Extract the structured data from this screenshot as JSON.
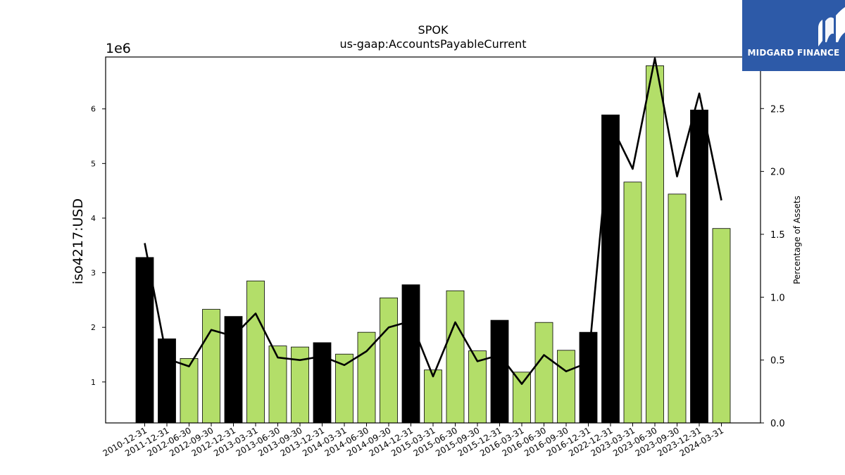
{
  "brand": {
    "name": "MIDGARD FINANCE",
    "bg_color": "#2d5aa8"
  },
  "chart_data": {
    "type": "bar",
    "title": "SPOK",
    "subtitle": "us-gaap:AccountsPayableCurrent",
    "ylabel": "iso4217:USD",
    "y_multiplier_label": "1e6",
    "y2label": "Percentage of Assets",
    "ylim": [
      250000,
      6950000
    ],
    "y2lim": [
      0,
      2.91
    ],
    "y_ticks": [
      1,
      2,
      3,
      4,
      5,
      6
    ],
    "y2_ticks": [
      "0.0",
      "0.5",
      "1.0",
      "1.5",
      "2.0",
      "2.5"
    ],
    "categories": [
      "2010-12-31",
      "2011-12-31",
      "2012-06-30",
      "2012-09-30",
      "2012-12-31",
      "2013-03-31",
      "2013-06-30",
      "2013-09-30",
      "2013-12-31",
      "2014-03-31",
      "2014-06-30",
      "2014-09-30",
      "2014-12-31",
      "2015-03-31",
      "2015-06-30",
      "2015-09-30",
      "2015-12-31",
      "2016-03-31",
      "2016-06-30",
      "2016-09-30",
      "2016-12-31",
      "2022-12-31",
      "2023-03-31",
      "2023-06-30",
      "2023-09-30",
      "2023-12-31",
      "2024-03-31"
    ],
    "series": [
      {
        "values": [
          3280000,
          1790000,
          1430000,
          2330000,
          2200000,
          2850000,
          1660000,
          1640000,
          1720000,
          1510000,
          1910000,
          2540000,
          2780000,
          1220000,
          2670000,
          1570000,
          2130000,
          1180000,
          2090000,
          1580000,
          1910000,
          5890000,
          4660000,
          6790000,
          4440000,
          5980000,
          3810000
        ]
      },
      {
        "type": "line",
        "values": [
          1.43,
          0.51,
          0.45,
          0.74,
          0.69,
          0.87,
          0.52,
          0.5,
          0.53,
          0.46,
          0.57,
          0.76,
          0.81,
          0.37,
          0.8,
          0.49,
          0.54,
          0.31,
          0.54,
          0.41,
          0.48,
          2.38,
          2.02,
          2.9,
          1.96,
          2.62,
          1.77
        ]
      }
    ],
    "annual_flags": [
      true,
      true,
      false,
      false,
      true,
      false,
      false,
      false,
      true,
      false,
      false,
      false,
      true,
      false,
      false,
      false,
      true,
      false,
      false,
      false,
      true,
      true,
      false,
      false,
      false,
      true,
      false
    ],
    "colors": {
      "annual": "#000000",
      "quarterly": "#b3de69",
      "line": "#000000",
      "edge": "#000000"
    },
    "grid": false,
    "legend": "none"
  }
}
